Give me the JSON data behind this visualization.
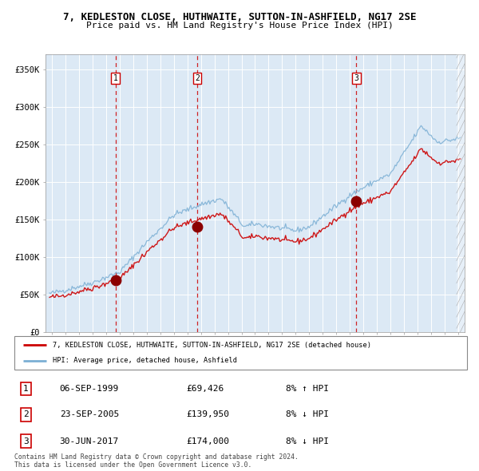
{
  "title1": "7, KEDLESTON CLOSE, HUTHWAITE, SUTTON-IN-ASHFIELD, NG17 2SE",
  "title2": "Price paid vs. HM Land Registry's House Price Index (HPI)",
  "legend_label1": "7, KEDLESTON CLOSE, HUTHWAITE, SUTTON-IN-ASHFIELD, NG17 2SE (detached house)",
  "legend_label2": "HPI: Average price, detached house, Ashfield",
  "transactions": [
    {
      "num": "1",
      "date": "06-SEP-1999",
      "price": "£69,426",
      "year": 1999.67,
      "price_val": 69426,
      "hpi_pct": "8% ↑ HPI"
    },
    {
      "num": "2",
      "date": "23-SEP-2005",
      "price": "£139,950",
      "year": 2005.72,
      "price_val": 139950,
      "hpi_pct": "8% ↓ HPI"
    },
    {
      "num": "3",
      "date": "30-JUN-2017",
      "price": "£174,000",
      "year": 2017.49,
      "price_val": 174000,
      "hpi_pct": "8% ↓ HPI"
    }
  ],
  "ylim": [
    0,
    370000
  ],
  "xlim_start": 1994.5,
  "xlim_end": 2025.5,
  "plot_bg": "#dce9f5",
  "line_color_red": "#cc0000",
  "line_color_blue": "#7bafd4",
  "marker_color": "#8b0000",
  "dashed_color": "#cc0000",
  "grid_color": "#ffffff",
  "footnote": "Contains HM Land Registry data © Crown copyright and database right 2024.\nThis data is licensed under the Open Government Licence v3.0."
}
